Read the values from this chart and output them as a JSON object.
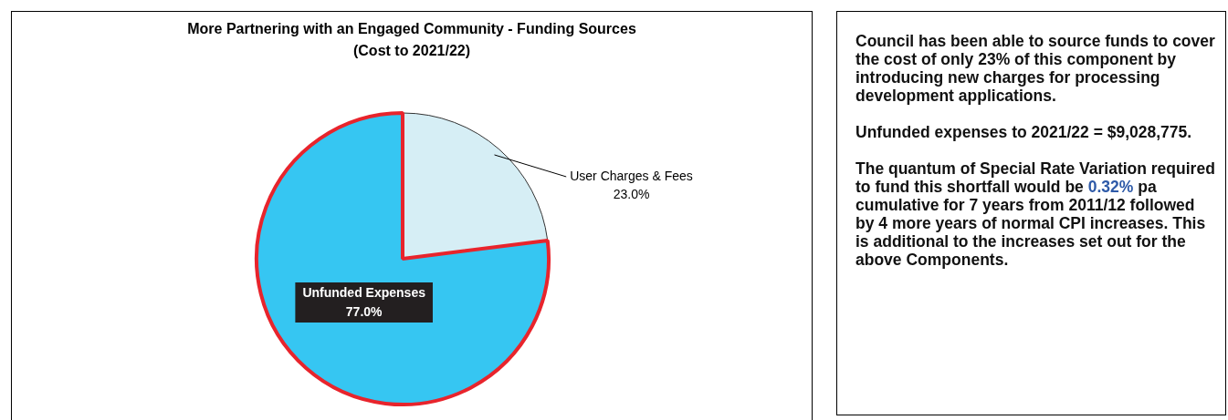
{
  "chart_data": [
    {
      "type": "pie",
      "title": "More Partnering with an Engaged Community - Funding Sources",
      "subtitle": "(Cost to 2021/22)",
      "categories": [
        "User Charges & Fees",
        "Unfunded Expenses"
      ],
      "values": [
        23.0,
        77.0
      ],
      "value_labels": [
        "23.0%",
        "77.0%"
      ],
      "colors": [
        "#d6eef5",
        "#36c6f2"
      ],
      "legend": false
    },
    {
      "type": "other",
      "annotations": [
        "Council has been able to source funds to cover the cost of only 23% of this component by introducing new charges for processing development applications.",
        "Unfunded expenses to 2021/22 = $9,028,775.",
        "The quantum of Special Rate Variation required to fund this shortfall would be",
        "0.32%",
        "pa cumulative for 7 years from 2011/12 followed by 4 more years of normal CPI increases. This is additional to the increases set out for the above Components."
      ]
    }
  ]
}
